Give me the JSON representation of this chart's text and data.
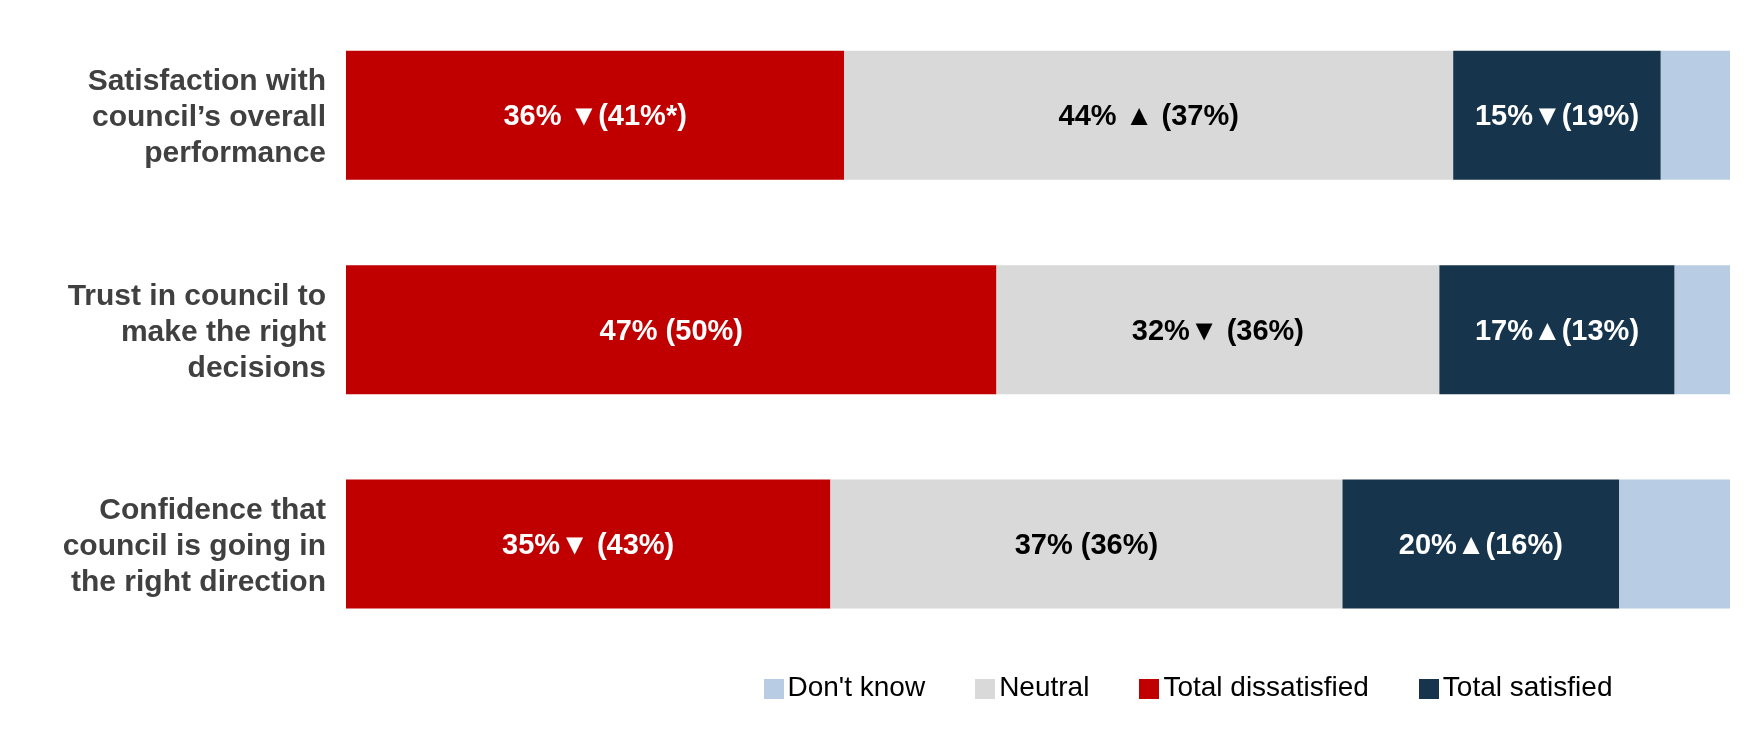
{
  "chart_data": {
    "type": "bar",
    "orientation": "horizontal",
    "stacked": true,
    "categories": [
      "Satisfaction with council’s overall performance",
      "Trust in council to make the right decisions",
      "Confidence that council is going in the right direction"
    ],
    "xlim": [
      0,
      100
    ],
    "legend": "bottom",
    "grid": false,
    "series": [
      {
        "name": "Total dissatisfied",
        "color": "#c00000",
        "values": [
          36,
          47,
          35
        ],
        "value_labels": [
          "36% ▼(41%*)",
          "47%  (50%)",
          "35%▼ (43%)"
        ]
      },
      {
        "name": "Neutral",
        "color": "#d9d9d9",
        "values": [
          44,
          32,
          37
        ],
        "value_labels": [
          "44% ▲ (37%)",
          "32%▼ (36%)",
          "37%  (36%)"
        ]
      },
      {
        "name": "Total satisfied",
        "color": "#17344d",
        "values": [
          15,
          17,
          20
        ],
        "value_labels": [
          "15%▼(19%)",
          "17%▲(13%)",
          "20%▲(16%)"
        ]
      },
      {
        "name": "Don't know",
        "color": "#b8cce4",
        "values": [
          5,
          4,
          8
        ]
      }
    ]
  }
}
